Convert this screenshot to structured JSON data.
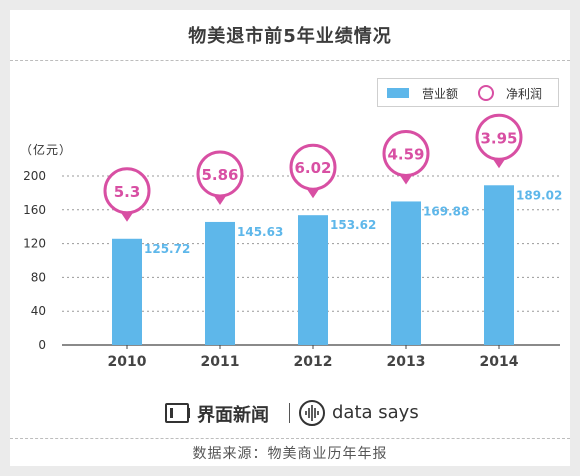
{
  "title": "物美退市前5年业绩情况",
  "unit_label": "（亿元）",
  "legend": {
    "bar_label": "营业额",
    "circle_label": "净利润"
  },
  "colors": {
    "bar": "#5eb7ea",
    "bar_label": "#5eb7ea",
    "bubble": "#d84fa3",
    "axis_text": "#333333"
  },
  "chart_data": {
    "type": "bar",
    "categories": [
      "2010",
      "2011",
      "2012",
      "2013",
      "2014"
    ],
    "series": [
      {
        "name": "营业额",
        "values": [
          125.72,
          145.63,
          153.62,
          169.88,
          189.02
        ]
      },
      {
        "name": "净利润",
        "values": [
          5.3,
          5.86,
          6.02,
          4.59,
          3.95
        ]
      }
    ],
    "bar_labels": [
      "125.72",
      "145.63",
      "153.62",
      "169.88",
      "189.02"
    ],
    "bubble_labels": [
      "5.3",
      "5.86",
      "6.02",
      "4.59",
      "3.95"
    ],
    "ylim": [
      0,
      200
    ],
    "yticks": [
      "0",
      "40",
      "80",
      "120",
      "160",
      "200"
    ],
    "ylabel": "（亿元）",
    "grid": true,
    "legend_position": "top-right"
  },
  "footer": {
    "brand": "界面新闻",
    "partner": "data says",
    "source": "数据来源：物美商业历年年报"
  }
}
